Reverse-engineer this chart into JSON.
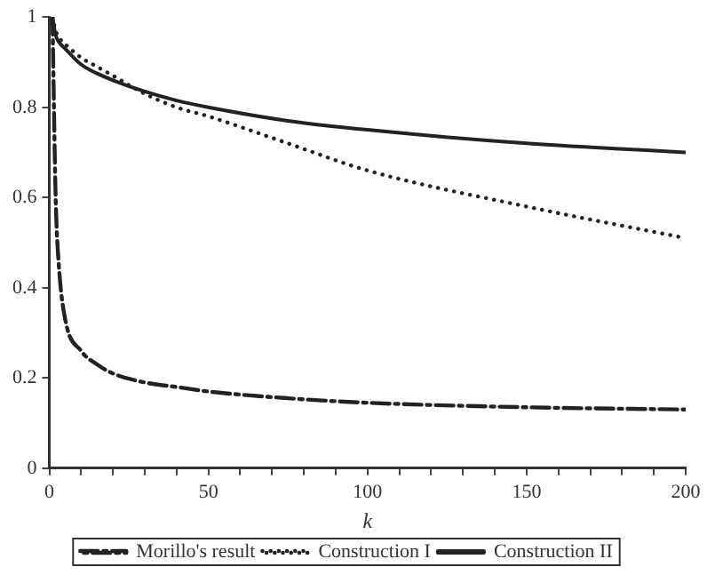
{
  "chart_data": {
    "type": "line",
    "xlabel": "k",
    "x": [
      1,
      2,
      3,
      5,
      10,
      15,
      20,
      30,
      40,
      50,
      75,
      100,
      150,
      200
    ],
    "series": [
      {
        "name": "Morillo's result",
        "color": "#222222",
        "line_style": "dashed",
        "values": [
          1,
          0.6,
          0.45,
          0.33,
          0.26,
          0.23,
          0.21,
          0.19,
          0.18,
          0.17,
          0.155,
          0.145,
          0.135,
          0.13
        ]
      },
      {
        "name": "Construction I",
        "color": "#222222",
        "line_style": "dotted",
        "values": [
          1,
          0.97,
          0.955,
          0.94,
          0.91,
          0.89,
          0.87,
          0.83,
          0.8,
          0.78,
          0.72,
          0.66,
          0.58,
          0.51
        ]
      },
      {
        "name": "Construction II",
        "color": "#222222",
        "line_style": "solid",
        "values": [
          1,
          0.96,
          0.945,
          0.93,
          0.895,
          0.875,
          0.86,
          0.835,
          0.815,
          0.8,
          0.77,
          0.75,
          0.72,
          0.7
        ]
      }
    ],
    "xlim": [
      0,
      200
    ],
    "xticks": [
      0,
      {
        "value": 10,
        "label": null
      },
      {
        "value": 20,
        "label": null
      },
      {
        "value": 30,
        "label": null
      },
      {
        "value": 40,
        "label": null
      },
      50,
      {
        "value": 60,
        "label": null
      },
      {
        "value": 70,
        "label": null
      },
      {
        "value": 80,
        "label": null
      },
      {
        "value": 90,
        "label": null
      },
      100,
      {
        "value": 110,
        "label": null
      },
      {
        "value": 120,
        "label": null
      },
      {
        "value": 130,
        "label": null
      },
      {
        "value": 140,
        "label": null
      },
      150,
      {
        "value": 160,
        "label": null
      },
      {
        "value": 170,
        "label": null
      },
      {
        "value": 180,
        "label": null
      },
      {
        "value": 190,
        "label": null
      },
      200
    ],
    "ylim": [
      0,
      1
    ],
    "yticks": [
      0,
      0.2,
      0.4,
      0.6,
      0.8,
      1
    ],
    "grid": false,
    "legend": "bottom",
    "marker": "none"
  }
}
